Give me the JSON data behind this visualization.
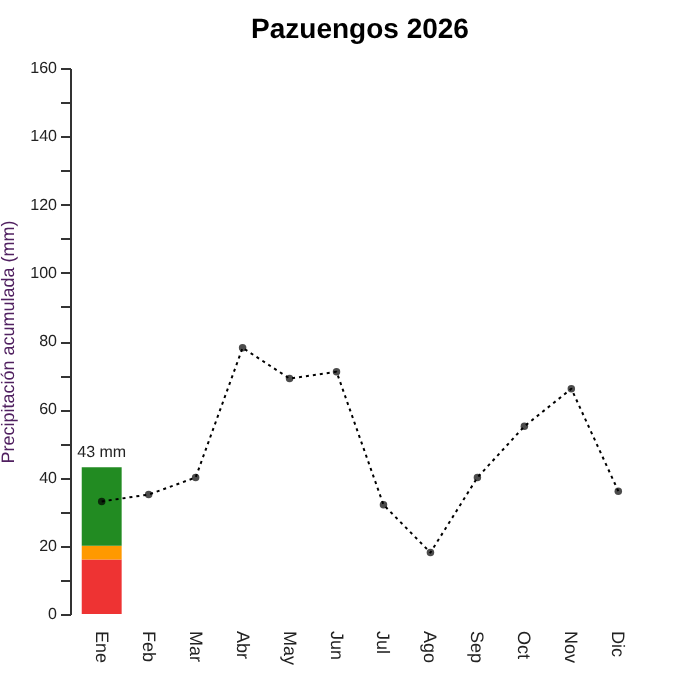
{
  "chart_data": {
    "type": "bar",
    "title": "Pazuengos 2026",
    "ylabel": "Precipitación acumulada (mm)",
    "categories": [
      "Ene",
      "Feb",
      "Mar",
      "Abr",
      "May",
      "Jun",
      "Jul",
      "Ago",
      "Sep",
      "Oct",
      "Nov",
      "Dic"
    ],
    "stacked": true,
    "series": [
      {
        "color": "#ee3333",
        "values": [
          16,
          null,
          null,
          null,
          null,
          null,
          null,
          null,
          null,
          null,
          null,
          null
        ]
      },
      {
        "color": "#ff9900",
        "values": [
          4,
          null,
          null,
          null,
          null,
          null,
          null,
          null,
          null,
          null,
          null,
          null
        ]
      },
      {
        "color": "#228b22",
        "values": [
          23,
          null,
          null,
          null,
          null,
          null,
          null,
          null,
          null,
          null,
          null,
          null
        ]
      },
      {
        "type": "line",
        "color": "#000000",
        "marker": "circle",
        "line_style": "dotted",
        "values": [
          33,
          35,
          40,
          78,
          69,
          71,
          32,
          18,
          40,
          55,
          66,
          36
        ]
      }
    ],
    "totals": [
      "43 mm",
      null,
      null,
      null,
      null,
      null,
      null,
      null,
      null,
      null,
      null,
      null
    ],
    "ylim": [
      0,
      160
    ],
    "yticks": [
      0,
      {
        "value": 10,
        "label": null
      },
      20,
      {
        "value": 30,
        "label": null
      },
      40,
      {
        "value": 50,
        "label": null
      },
      60,
      {
        "value": 70,
        "label": null
      },
      80,
      {
        "value": 90,
        "label": null
      },
      100,
      {
        "value": 110,
        "label": null
      },
      120,
      {
        "value": 130,
        "label": null
      },
      140,
      {
        "value": 150,
        "label": null
      },
      160
    ],
    "grid": false
  }
}
